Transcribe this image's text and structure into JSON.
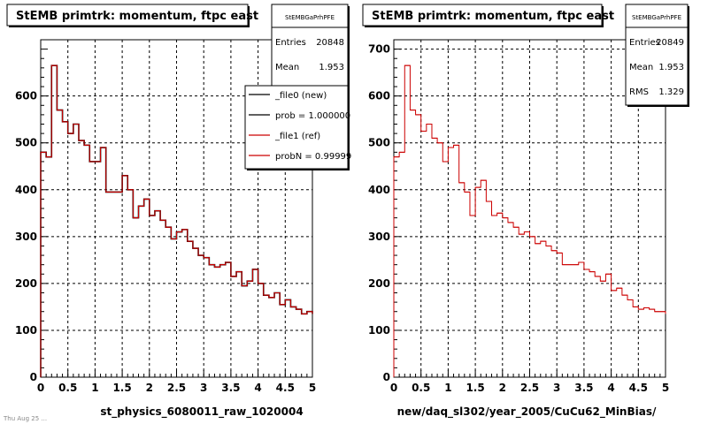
{
  "chart_data": [
    {
      "type": "histogram",
      "title": "StEMB primtrk: momentum, ftpc east",
      "xlabel": "st_physics_6080011_raw_1020004",
      "ylabel": "",
      "xlim": [
        0,
        5
      ],
      "ylim": [
        0,
        720
      ],
      "x_ticks": [
        "0",
        "0.5",
        "1",
        "1.5",
        "2",
        "2.5",
        "3",
        "3.5",
        "4",
        "4.5",
        "5"
      ],
      "y_ticks": [
        "0",
        "100",
        "200",
        "300",
        "400",
        "500",
        "600"
      ],
      "grid": true,
      "bin_edges_start": 0,
      "bin_width": 0.1,
      "series": [
        {
          "name": "_file0 (new)",
          "color": "#000000",
          "values": [
            480,
            470,
            665,
            570,
            545,
            520,
            540,
            505,
            495,
            460,
            460,
            490,
            395,
            395,
            395,
            430,
            400,
            340,
            365,
            380,
            345,
            355,
            335,
            320,
            295,
            310,
            315,
            290,
            275,
            260,
            255,
            240,
            235,
            240,
            245,
            215,
            225,
            195,
            205,
            230,
            200,
            175,
            170,
            180,
            155,
            165,
            150,
            145,
            135,
            140,
            135
          ]
        },
        {
          "name": "_file1 (ref)",
          "color": "#cc0000",
          "values": [
            480,
            470,
            665,
            570,
            545,
            520,
            540,
            505,
            495,
            460,
            460,
            490,
            395,
            395,
            395,
            430,
            400,
            340,
            365,
            380,
            345,
            355,
            335,
            320,
            295,
            310,
            315,
            290,
            275,
            260,
            255,
            240,
            235,
            240,
            245,
            215,
            225,
            195,
            205,
            230,
            200,
            175,
            170,
            180,
            155,
            165,
            150,
            145,
            135,
            140,
            135
          ]
        }
      ],
      "stats": {
        "name": "StEMBGaPrhPFE",
        "entries_label": "Entries",
        "entries": "20848",
        "mean_label": "Mean",
        "mean": "1.953"
      },
      "legend_entries": [
        "_file0 (new)",
        "prob = 1.000000",
        "_file1 (ref)",
        "probN = 0.99999"
      ]
    },
    {
      "type": "histogram",
      "title": "StEMB primtrk: momentum, ftpc east",
      "xlabel": "new/daq_sl302/year_2005/CuCu62_MinBias/",
      "ylabel": "",
      "xlim": [
        0,
        5
      ],
      "ylim": [
        0,
        720
      ],
      "x_ticks": [
        "0",
        "0.5",
        "1",
        "1.5",
        "2",
        "2.5",
        "3",
        "3.5",
        "4",
        "4.5",
        "5"
      ],
      "y_ticks": [
        "0",
        "100",
        "200",
        "300",
        "400",
        "500",
        "600",
        "700"
      ],
      "grid": true,
      "bin_edges_start": 0,
      "bin_width": 0.1,
      "series": [
        {
          "name": "",
          "color": "#cc0000",
          "values": [
            470,
            480,
            665,
            570,
            560,
            525,
            540,
            510,
            500,
            460,
            490,
            495,
            415,
            395,
            345,
            405,
            420,
            375,
            345,
            350,
            340,
            330,
            320,
            305,
            310,
            300,
            285,
            290,
            280,
            270,
            265,
            240,
            240,
            240,
            245,
            230,
            225,
            215,
            205,
            220,
            185,
            190,
            175,
            165,
            150,
            145,
            148,
            145,
            140,
            140,
            135
          ]
        }
      ],
      "stats": {
        "name": "StEMBGaPrhPFE",
        "entries_label": "Entries",
        "entries": "20849",
        "mean_label": "Mean",
        "mean": "1.953",
        "rms_label": "RMS",
        "rms": "1.329"
      }
    }
  ],
  "footer_text": "Thu Aug 25 ..."
}
